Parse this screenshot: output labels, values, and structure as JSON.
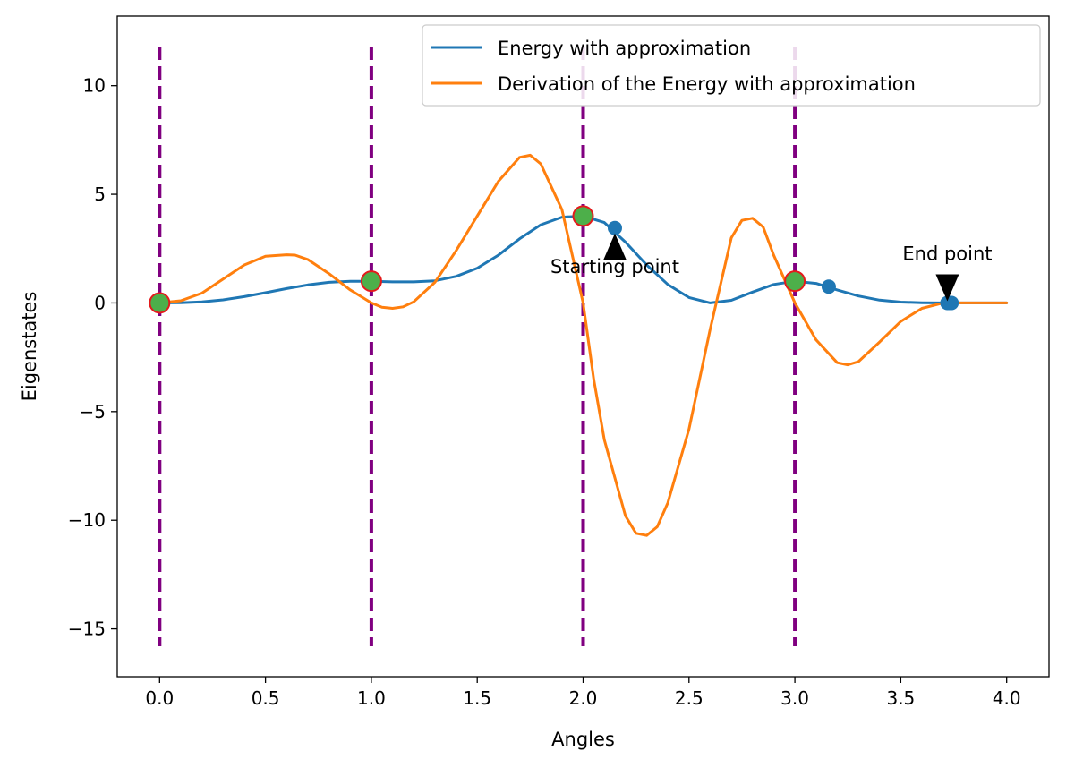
{
  "chart_data": {
    "type": "line",
    "title": "",
    "xlabel": "Angles",
    "ylabel": "Eigenstates",
    "xlim": [
      -0.2,
      4.2
    ],
    "ylim": [
      -17.2,
      13.2
    ],
    "xticks": [
      0.0,
      0.5,
      1.0,
      1.5,
      2.0,
      2.5,
      3.0,
      3.5,
      4.0
    ],
    "xtick_labels": [
      "0.0",
      "0.5",
      "1.0",
      "1.5",
      "2.0",
      "2.5",
      "3.0",
      "3.5",
      "4.0"
    ],
    "yticks": [
      10,
      5,
      0,
      -5,
      -10,
      -15
    ],
    "ytick_labels": [
      "10",
      "5",
      "0",
      "−5",
      "−10",
      "−15"
    ],
    "grid": false,
    "legend_position": "top-right",
    "series": [
      {
        "name": "Energy with approximation",
        "color": "#1f77b4",
        "x": [
          0.0,
          0.1,
          0.2,
          0.3,
          0.4,
          0.5,
          0.6,
          0.7,
          0.8,
          0.9,
          1.0,
          1.1,
          1.2,
          1.3,
          1.4,
          1.5,
          1.6,
          1.7,
          1.8,
          1.9,
          2.0,
          2.1,
          2.2,
          2.3,
          2.4,
          2.5,
          2.6,
          2.7,
          2.8,
          2.9,
          3.0,
          3.1,
          3.2,
          3.3,
          3.4,
          3.5,
          3.6,
          3.7,
          3.8,
          3.9,
          4.0
        ],
        "y": [
          0.0,
          0.01,
          0.05,
          0.14,
          0.29,
          0.47,
          0.66,
          0.83,
          0.95,
          1.0,
          1.0,
          0.97,
          0.97,
          1.02,
          1.22,
          1.6,
          2.2,
          2.95,
          3.6,
          3.95,
          4.0,
          3.7,
          2.8,
          1.75,
          0.85,
          0.25,
          0.0,
          0.12,
          0.5,
          0.85,
          1.0,
          0.9,
          0.6,
          0.32,
          0.13,
          0.04,
          0.01,
          0.0,
          0.0,
          0.0,
          0.0
        ]
      },
      {
        "name": "Derivation of the Energy with approximation",
        "color": "#ff7f0e",
        "x": [
          0.0,
          0.1,
          0.2,
          0.3,
          0.4,
          0.5,
          0.6,
          0.64,
          0.7,
          0.8,
          0.9,
          1.0,
          1.05,
          1.1,
          1.15,
          1.2,
          1.3,
          1.4,
          1.5,
          1.6,
          1.7,
          1.75,
          1.8,
          1.9,
          2.0,
          2.05,
          2.1,
          2.2,
          2.25,
          2.3,
          2.35,
          2.4,
          2.5,
          2.6,
          2.7,
          2.75,
          2.8,
          2.85,
          2.9,
          3.0,
          3.1,
          3.2,
          3.25,
          3.3,
          3.4,
          3.5,
          3.6,
          3.7,
          3.8,
          4.0
        ],
        "y": [
          0.0,
          0.1,
          0.45,
          1.1,
          1.75,
          2.15,
          2.22,
          2.2,
          2.0,
          1.35,
          0.6,
          0.0,
          -0.2,
          -0.25,
          -0.18,
          0.05,
          0.95,
          2.4,
          4.0,
          5.6,
          6.7,
          6.8,
          6.4,
          4.3,
          0.0,
          -3.5,
          -6.3,
          -9.8,
          -10.6,
          -10.7,
          -10.3,
          -9.2,
          -5.8,
          -1.2,
          3.0,
          3.8,
          3.9,
          3.5,
          2.2,
          0.0,
          -1.7,
          -2.75,
          -2.85,
          -2.7,
          -1.8,
          -0.85,
          -0.25,
          0.0,
          0.0,
          0.0
        ]
      }
    ],
    "vlines": {
      "x": [
        0.0,
        1.0,
        2.0,
        3.0
      ],
      "ymin": -15.8,
      "ymax": 11.8,
      "color": "#800080",
      "style": "dashed"
    },
    "markers_green": {
      "x": [
        0.0,
        1.0,
        2.0,
        3.0
      ],
      "y": [
        0.0,
        1.0,
        4.0,
        1.0
      ],
      "fill": "#4daf4a",
      "edge": "#e41a1c"
    },
    "markers_blue": {
      "x": [
        2.15,
        3.16,
        3.72,
        3.73,
        3.74
      ],
      "y": [
        3.45,
        0.75,
        0.0,
        0.0,
        0.0
      ],
      "color": "#1f77b4"
    },
    "annotations": [
      {
        "text": "Starting point",
        "x": 2.15,
        "y": 3.45,
        "text_x": 2.15,
        "text_y": 1.7,
        "arrow": "up"
      },
      {
        "text": "End point",
        "x": 3.72,
        "y": 0.0,
        "text_x": 3.72,
        "text_y": 2.3,
        "arrow": "down"
      }
    ]
  }
}
